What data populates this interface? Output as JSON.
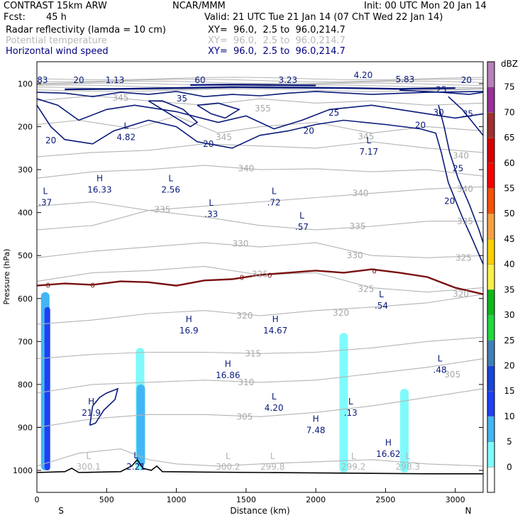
{
  "header": {
    "model": "CONTRAST 15km ARW",
    "org": "NCAR/MMM",
    "init": "Init: 00 UTC Mon 20 Jan 14",
    "fcst_label": "Fcst:",
    "fcst_value": "45 h",
    "valid": "Valid: 21 UTC Tue 21 Jan 14 (07 ChT Wed 22 Jan 14)"
  },
  "fields": [
    {
      "name": "Radar reflectivity (lamda = 10 cm)",
      "xy": "XY=  96.0,  2.5 to  96.0,214.7",
      "color": "#000000"
    },
    {
      "name": "Potential temperature",
      "xy": "XY=  96.0,  2.5 to  96.0,214.7",
      "color": "#b8b8b8"
    },
    {
      "name": "Horizontal wind speed",
      "xy": "XY=  96.0,  2.5 to  96.0,214.7",
      "color": "#000080"
    }
  ],
  "chart_data": {
    "type": "cross-section",
    "xlabel": "Distance (km)",
    "ylabel": "Pressure (hPa)",
    "xlim": [
      0,
      3200
    ],
    "ylim": [
      1050,
      50
    ],
    "x_ticks": [
      "0",
      "500",
      "1000",
      "1500",
      "2000",
      "2500",
      "3000"
    ],
    "y_ticks": [
      "100",
      "200",
      "300",
      "400",
      "500",
      "600",
      "700",
      "800",
      "900",
      "1000"
    ],
    "x_end_labels": {
      "left": "S",
      "right": "N"
    },
    "colorbar": {
      "title": "dBZ",
      "levels": [
        "0",
        "5",
        "10",
        "15",
        "20",
        "25",
        "30",
        "35",
        "40",
        "45",
        "50",
        "55",
        "60",
        "65",
        "70",
        "75"
      ],
      "colors": [
        "#ffffff",
        "#7ffafa",
        "#42b6f5",
        "#1f3ff5",
        "#1a44d8",
        "#3f7fb6",
        "#1fd83f",
        "#0fb81a",
        "#f8f048",
        "#f8d000",
        "#f8a040",
        "#f85000",
        "#f80000",
        "#d80000",
        "#a03030",
        "#983098",
        "#b880b8"
      ]
    },
    "theta_labels": [
      {
        "x": 600,
        "p": 133,
        "text": "345"
      },
      {
        "x": 1620,
        "p": 158,
        "text": "355"
      },
      {
        "x": 1340,
        "p": 225,
        "text": "345"
      },
      {
        "x": 2360,
        "p": 223,
        "text": "345"
      },
      {
        "x": 1500,
        "p": 297,
        "text": "340"
      },
      {
        "x": 2320,
        "p": 355,
        "text": "340"
      },
      {
        "x": 900,
        "p": 393,
        "text": "335"
      },
      {
        "x": 2300,
        "p": 432,
        "text": "335"
      },
      {
        "x": 1460,
        "p": 472,
        "text": "330"
      },
      {
        "x": 2280,
        "p": 500,
        "text": "330"
      },
      {
        "x": 1600,
        "p": 543,
        "text": "325"
      },
      {
        "x": 2360,
        "p": 578,
        "text": "325"
      },
      {
        "x": 1490,
        "p": 640,
        "text": "320"
      },
      {
        "x": 2180,
        "p": 633,
        "text": "320"
      },
      {
        "x": 1550,
        "p": 728,
        "text": "315"
      },
      {
        "x": 1500,
        "p": 795,
        "text": "310"
      },
      {
        "x": 1490,
        "p": 875,
        "text": "305"
      },
      {
        "x": 2980,
        "p": 777,
        "text": "305"
      },
      {
        "x": 3040,
        "p": 590,
        "text": "320"
      },
      {
        "x": 3060,
        "p": 505,
        "text": "325"
      },
      {
        "x": 3070,
        "p": 420,
        "text": "335"
      },
      {
        "x": 3070,
        "p": 345,
        "text": "340"
      },
      {
        "x": 3040,
        "p": 268,
        "text": "340"
      }
    ],
    "wind_labels": [
      {
        "x": 40,
        "p": 92,
        "text": "83"
      },
      {
        "x": 300,
        "p": 92,
        "text": "20"
      },
      {
        "x": 560,
        "p": 92,
        "text": "1.13"
      },
      {
        "x": 1170,
        "p": 92,
        "text": "60"
      },
      {
        "x": 1800,
        "p": 92,
        "text": "3.23"
      },
      {
        "x": 2340,
        "p": 80,
        "text": "4.20"
      },
      {
        "x": 2640,
        "p": 90,
        "text": "5.83"
      },
      {
        "x": 3080,
        "p": 92,
        "text": "20"
      },
      {
        "x": 2900,
        "p": 114,
        "text": "25"
      },
      {
        "x": 1040,
        "p": 135,
        "text": "35"
      },
      {
        "x": 2880,
        "p": 167,
        "text": "30"
      },
      {
        "x": 3090,
        "p": 170,
        "text": "35"
      },
      {
        "x": 2130,
        "p": 168,
        "text": "25"
      },
      {
        "x": 1950,
        "p": 210,
        "text": "20"
      },
      {
        "x": 2750,
        "p": 197,
        "text": "20"
      },
      {
        "x": 1230,
        "p": 240,
        "text": "20"
      },
      {
        "x": 100,
        "p": 232,
        "text": "20"
      },
      {
        "x": 3020,
        "p": 297,
        "text": "25"
      },
      {
        "x": 2960,
        "p": 373,
        "text": "20"
      }
    ],
    "extrema": [
      {
        "type": "L",
        "x": 640,
        "p": 218,
        "value": "4.82"
      },
      {
        "type": "L",
        "x": 2380,
        "p": 252,
        "value": "7.17"
      },
      {
        "type": "H",
        "x": 450,
        "p": 340,
        "value": "16.33"
      },
      {
        "type": "L",
        "x": 960,
        "p": 340,
        "value": "2.56"
      },
      {
        "type": "L",
        "x": 60,
        "p": 370,
        "value": ".37"
      },
      {
        "type": "L",
        "x": 1700,
        "p": 370,
        "value": ".72"
      },
      {
        "type": "L",
        "x": 1250,
        "p": 397,
        "value": ".33"
      },
      {
        "type": "L",
        "x": 1900,
        "p": 427,
        "value": ".57"
      },
      {
        "type": "L",
        "x": 2470,
        "p": 610,
        "value": ".54"
      },
      {
        "type": "H",
        "x": 1090,
        "p": 668,
        "value": "16.9"
      },
      {
        "type": "H",
        "x": 1710,
        "p": 668,
        "value": "14.67"
      },
      {
        "type": "H",
        "x": 1370,
        "p": 772,
        "value": "16.86"
      },
      {
        "type": "L",
        "x": 2890,
        "p": 760,
        "value": ".48"
      },
      {
        "type": "L",
        "x": 1700,
        "p": 848,
        "value": "4.20"
      },
      {
        "type": "H",
        "x": 390,
        "p": 860,
        "value": "21.9"
      },
      {
        "type": "L",
        "x": 2250,
        "p": 860,
        "value": ".13"
      },
      {
        "type": "H",
        "x": 2000,
        "p": 900,
        "value": "7.48"
      },
      {
        "type": "H",
        "x": 2520,
        "p": 955,
        "value": "16.62"
      },
      {
        "type": "L",
        "x": 710,
        "p": 985,
        "value": "2.21"
      }
    ],
    "surface_lows": [
      {
        "x": 370,
        "value": "300.1"
      },
      {
        "x": 1370,
        "value": "300.2"
      },
      {
        "x": 1690,
        "value": "299.8"
      },
      {
        "x": 2270,
        "value": "299.2"
      },
      {
        "x": 2660,
        "value": "298.3"
      }
    ],
    "freezing_level_label": "0",
    "reflectivity_cells": [
      {
        "x": 60,
        "p_top": 585,
        "p_bottom": 1000,
        "dbz": 10
      },
      {
        "x": 75,
        "p_top": 620,
        "p_bottom": 1000,
        "dbz": 15
      },
      {
        "x": 740,
        "p_top": 715,
        "p_bottom": 1000,
        "dbz": 5
      },
      {
        "x": 745,
        "p_top": 800,
        "p_bottom": 990,
        "dbz": 10
      },
      {
        "x": 2200,
        "p_top": 680,
        "p_bottom": 1005,
        "dbz": 5
      },
      {
        "x": 2635,
        "p_top": 810,
        "p_bottom": 1005,
        "dbz": 5
      }
    ]
  }
}
